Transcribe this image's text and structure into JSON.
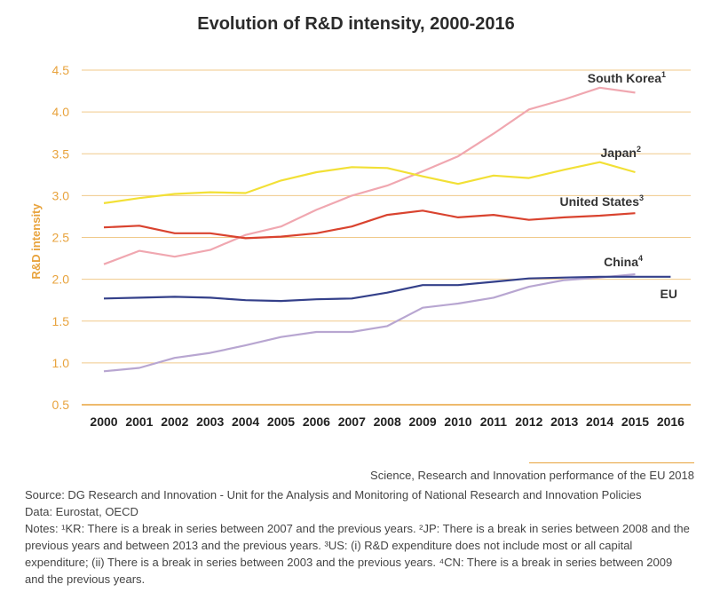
{
  "chart_data": {
    "type": "line",
    "title": "Evolution of R&D intensity, 2000-2016",
    "xlabel": "",
    "ylabel": "R&D intensity",
    "ylim": [
      0.5,
      4.5
    ],
    "yticks": [
      "0.5",
      "1.0",
      "1.5",
      "2.0",
      "2.5",
      "3.0",
      "3.5",
      "4.0",
      "4.5"
    ],
    "ytick_values": [
      0.5,
      1.0,
      1.5,
      2.0,
      2.5,
      3.0,
      3.5,
      4.0,
      4.5
    ],
    "categories": [
      "2000",
      "2001",
      "2002",
      "2003",
      "2004",
      "2005",
      "2006",
      "2007",
      "2008",
      "2009",
      "2010",
      "2011",
      "2012",
      "2013",
      "2014",
      "2015",
      "2016"
    ],
    "grid": true,
    "series": [
      {
        "name": "South Korea",
        "sup": "1",
        "color": "#f0a7b0",
        "values": [
          2.18,
          2.34,
          2.27,
          2.35,
          2.53,
          2.63,
          2.83,
          3.0,
          3.12,
          3.29,
          3.47,
          3.74,
          4.03,
          4.15,
          4.29,
          4.23,
          null
        ]
      },
      {
        "name": "Japan",
        "sup": "2",
        "color": "#f2e036",
        "values": [
          2.91,
          2.97,
          3.02,
          3.04,
          3.03,
          3.18,
          3.28,
          3.34,
          3.33,
          3.23,
          3.14,
          3.24,
          3.21,
          3.31,
          3.4,
          3.28,
          null
        ]
      },
      {
        "name": "United States",
        "sup": "3",
        "color": "#d9432f",
        "values": [
          2.62,
          2.64,
          2.55,
          2.55,
          2.49,
          2.51,
          2.55,
          2.63,
          2.77,
          2.82,
          2.74,
          2.77,
          2.71,
          2.74,
          2.76,
          2.79,
          null
        ]
      },
      {
        "name": "China",
        "sup": "4",
        "color": "#b8a6d1",
        "values": [
          0.9,
          0.94,
          1.06,
          1.12,
          1.21,
          1.31,
          1.37,
          1.37,
          1.44,
          1.66,
          1.71,
          1.78,
          1.91,
          1.99,
          2.02,
          2.06,
          null
        ]
      },
      {
        "name": "EU",
        "sup": "",
        "color": "#34408a",
        "values": [
          1.77,
          1.78,
          1.79,
          1.78,
          1.75,
          1.74,
          1.76,
          1.77,
          1.84,
          1.93,
          1.93,
          1.97,
          2.01,
          2.02,
          2.03,
          2.03,
          2.03
        ]
      }
    ]
  },
  "credit": "Science, Research and Innovation performance of the EU 2018",
  "source": "Source: DG Research and Innovation - Unit for the Analysis and Monitoring of National Research and Innovation Policies",
  "data_line": "Data: Eurostat, OECD",
  "notes": "Notes: ¹KR: There is a break in series between 2007 and the previous years. ²JP: There is a break in series between 2008 and the previous years and between 2013 and the previous years. ³US: (i) R&D expenditure does not include most or all capital expenditure; (ii) There is a break in series between 2003 and the previous years. ⁴CN: There is a break in series between 2009 and the previous years.",
  "colors": {
    "axis": "#e8a33d",
    "grid": "#f0c98a"
  }
}
